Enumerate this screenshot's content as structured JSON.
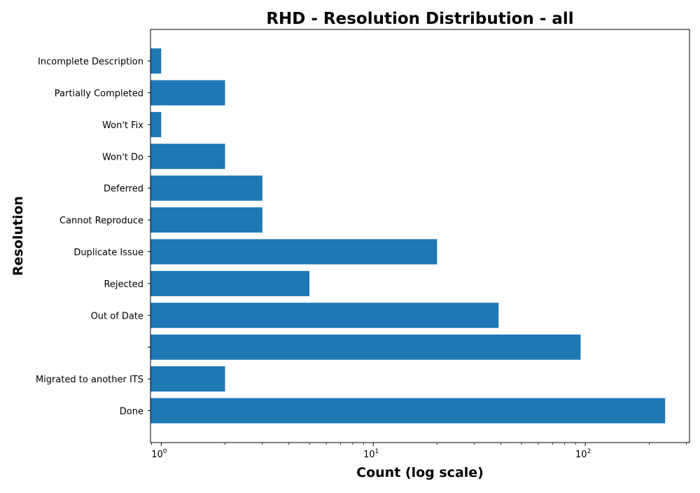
{
  "chart_data": {
    "type": "bar",
    "orientation": "horizontal",
    "title": "RHD - Resolution Distribution - all",
    "xlabel": "Count (log scale)",
    "ylabel": "Resolution",
    "x_scale": "log",
    "xlim": [
      0.89,
      310
    ],
    "x_ticks": [
      {
        "value": 1,
        "base": "10",
        "exp": "0"
      },
      {
        "value": 10,
        "base": "10",
        "exp": "1"
      },
      {
        "value": 100,
        "base": "10",
        "exp": "2"
      }
    ],
    "categories": [
      "Done",
      "Migrated to another ITS",
      "",
      "Out of Date",
      "Rejected",
      "Duplicate Issue",
      "Cannot Reproduce",
      "Deferred",
      "Won't Do",
      "Won't Fix",
      "Partially Completed",
      "Incomplete Description"
    ],
    "values": [
      238,
      2,
      95,
      39,
      5,
      20,
      3,
      3,
      2,
      1,
      2,
      1
    ],
    "bar_color": "#1f77b4",
    "grid": false,
    "legend": "none"
  }
}
